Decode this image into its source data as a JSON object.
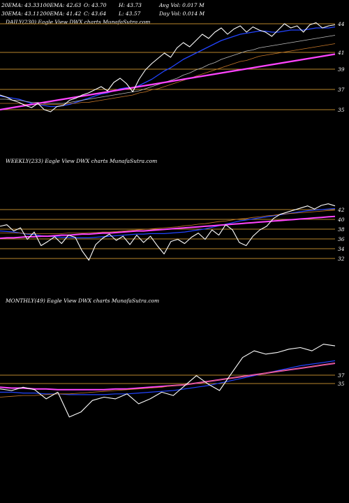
{
  "header": {
    "row1": [
      "20EMA: 43.33",
      "100EMA: 42.63",
      "O: 43.70",
      "H: 43.73",
      "Avg Vol: 0.017  M"
    ],
    "row2": [
      "30EMA: 43.11",
      "200EMA: 41.42",
      "C: 43.64",
      "L: 43.57",
      "Day Vol: 0.014  M"
    ]
  },
  "colors": {
    "background": "#000000",
    "gridline": "#b8862b",
    "price": "#ffffff",
    "ema_blue": "#2244ff",
    "ema_magenta": "#ff44ff",
    "ema_orange": "#c87828",
    "ema_gray": "#bbbbbb"
  },
  "chart_data": [
    {
      "type": "line",
      "title": "DAILY(230) Eagle  View  DWX  charts MunafaSutra.com",
      "yticks": [
        44,
        41,
        39,
        37,
        35
      ],
      "series": [
        {
          "values": [
            37.0,
            36.8,
            36.5,
            36.3,
            36.0,
            35.8,
            36.2,
            35.6,
            35.4,
            35.9,
            36.0,
            36.5,
            36.7,
            37.0,
            37.2,
            37.5,
            37.8,
            37.4,
            38.2,
            38.6,
            38.1,
            37.3,
            38.5,
            39.4,
            40.0,
            40.5,
            41.0,
            40.6,
            41.5,
            42.0,
            41.6,
            42.2,
            42.8,
            42.4,
            43.0,
            43.4,
            42.8,
            43.3,
            43.6,
            43.0,
            43.5,
            43.2,
            43.0,
            42.6,
            43.2,
            43.8,
            43.4,
            43.6,
            43.0,
            43.7,
            43.9,
            43.4,
            43.6,
            43.7
          ]
        },
        {
          "values": [
            36.9,
            36.8,
            36.7,
            36.6,
            36.4,
            36.2,
            36.1,
            36.0,
            35.9,
            35.9,
            36.0,
            36.1,
            36.3,
            36.5,
            36.7,
            36.9,
            37.1,
            37.2,
            37.4,
            37.6,
            37.7,
            37.7,
            37.9,
            38.2,
            38.5,
            38.9,
            39.3,
            39.6,
            40.0,
            40.4,
            40.7,
            41.0,
            41.3,
            41.6,
            41.9,
            42.2,
            42.4,
            42.6,
            42.8,
            42.9,
            43.0,
            43.1,
            43.1,
            43.0,
            43.0,
            43.1,
            43.2,
            43.2,
            43.2,
            43.3,
            43.4,
            43.4,
            43.4,
            43.5
          ]
        },
        {
          "values": [
            36.6,
            36.6,
            36.5,
            36.5,
            36.4,
            36.3,
            36.3,
            36.2,
            36.2,
            36.2,
            36.2,
            36.3,
            36.4,
            36.5,
            36.6,
            36.7,
            36.8,
            36.9,
            37.0,
            37.1,
            37.2,
            37.3,
            37.4,
            37.6,
            37.8,
            38.0,
            38.2,
            38.4,
            38.6,
            38.9,
            39.1,
            39.4,
            39.6,
            39.9,
            40.1,
            40.4,
            40.6,
            40.8,
            41.0,
            41.2,
            41.3,
            41.5,
            41.6,
            41.7,
            41.8,
            41.9,
            42.0,
            42.1,
            42.2,
            42.3,
            42.4,
            42.5,
            42.6,
            42.7
          ]
        },
        {
          "values": [
            36.2,
            36.2,
            36.2,
            36.2,
            36.1,
            36.1,
            36.1,
            36.1,
            36.1,
            36.1,
            36.1,
            36.2,
            36.2,
            36.3,
            36.3,
            36.4,
            36.5,
            36.6,
            36.7,
            36.8,
            36.9,
            37.0,
            37.2,
            37.3,
            37.5,
            37.6,
            37.8,
            38.0,
            38.2,
            38.4,
            38.6,
            38.8,
            39.0,
            39.2,
            39.4,
            39.6,
            39.8,
            40.0,
            40.2,
            40.3,
            40.5,
            40.7,
            40.8,
            40.9,
            41.0,
            41.1,
            41.2,
            41.3,
            41.4,
            41.5,
            41.6,
            41.7,
            41.8,
            41.9
          ]
        },
        {
          "values": [
            35.6,
            35.7,
            35.8,
            35.9,
            36.0,
            36.1,
            36.2,
            36.3,
            36.4,
            36.5,
            36.6,
            36.7,
            36.8,
            36.9,
            37.0,
            37.1,
            37.2,
            37.3,
            37.4,
            37.5,
            37.6,
            37.7,
            37.8,
            37.9,
            38.0,
            38.1,
            38.2,
            38.3,
            38.4,
            38.5,
            38.6,
            38.7,
            38.8,
            38.9,
            39.0,
            39.1,
            39.2,
            39.3,
            39.4,
            39.5,
            39.6,
            39.7,
            39.8,
            39.9,
            40.0,
            40.1,
            40.2,
            40.3,
            40.4,
            40.5,
            40.6,
            40.7,
            40.8,
            40.9
          ]
        }
      ]
    },
    {
      "type": "line",
      "title": "WEEKLY(233) Eagle  View  DWX  charts MunafaSutra.com",
      "yticks": [
        42,
        40,
        38,
        36,
        34,
        32
      ],
      "series": [
        {
          "values": [
            38.5,
            38.8,
            37.6,
            38.2,
            36.0,
            37.4,
            34.8,
            35.6,
            36.5,
            35.2,
            36.8,
            36.4,
            33.8,
            32.0,
            35.0,
            36.2,
            37.0,
            35.8,
            36.6,
            35.0,
            36.8,
            35.4,
            36.6,
            34.8,
            33.2,
            35.6,
            36.0,
            35.2,
            36.4,
            37.2,
            36.0,
            37.8,
            36.8,
            38.8,
            37.8,
            35.4,
            34.8,
            36.6,
            37.8,
            38.5,
            40.0,
            40.8,
            41.2,
            41.6,
            42.0,
            42.4,
            41.8,
            42.5,
            42.8,
            42.4
          ]
        },
        {
          "values": [
            37.6,
            37.5,
            37.4,
            37.2,
            37.0,
            36.9,
            36.7,
            36.6,
            36.5,
            36.4,
            36.4,
            36.3,
            36.3,
            36.3,
            36.4,
            36.5,
            36.6,
            36.7,
            36.8,
            36.9,
            37.0,
            37.0,
            37.1,
            37.1,
            37.1,
            37.2,
            37.3,
            37.4,
            37.6,
            37.8,
            38.0,
            38.3,
            38.6,
            38.9,
            39.2,
            39.5,
            39.7,
            39.9,
            40.1,
            40.3,
            40.5,
            40.7,
            40.9,
            41.1,
            41.3,
            41.5,
            41.6,
            41.7,
            41.8,
            41.9
          ]
        },
        {
          "values": [
            36.2,
            36.3,
            36.3,
            36.4,
            36.5,
            36.5,
            36.6,
            36.6,
            36.7,
            36.8,
            36.8,
            36.9,
            37.0,
            37.0,
            37.1,
            37.2,
            37.2,
            37.3,
            37.4,
            37.5,
            37.6,
            37.6,
            37.7,
            37.8,
            37.9,
            38.0,
            38.1,
            38.2,
            38.3,
            38.4,
            38.5,
            38.6,
            38.7,
            38.8,
            38.9,
            39.0,
            39.1,
            39.2,
            39.3,
            39.4,
            39.5,
            39.6,
            39.7,
            39.8,
            39.9,
            40.0,
            40.1,
            40.2,
            40.3,
            40.4
          ]
        },
        {
          "values": [
            37.2,
            37.2,
            37.2,
            37.2,
            37.1,
            37.1,
            37.1,
            37.1,
            37.1,
            37.1,
            37.2,
            37.2,
            37.2,
            37.3,
            37.3,
            37.4,
            37.4,
            37.5,
            37.6,
            37.7,
            37.8,
            37.9,
            38.0,
            38.1,
            38.2,
            38.3,
            38.4,
            38.6,
            38.7,
            38.9,
            39.0,
            39.2,
            39.4,
            39.5,
            39.7,
            39.9,
            40.0,
            40.2,
            40.3,
            40.5,
            40.6,
            40.8,
            40.9,
            41.0,
            41.1,
            41.2,
            41.3,
            41.4,
            41.5,
            41.6
          ]
        }
      ]
    },
    {
      "type": "line",
      "title": "MONTHLY(49) Eagle  View  DWX  charts MunafaSutra.com",
      "yticks": [
        37,
        35
      ],
      "series": [
        {
          "values": [
            36.4,
            36.2,
            36.6,
            36.3,
            35.2,
            36.0,
            33.0,
            33.6,
            35.0,
            35.4,
            35.2,
            35.8,
            34.6,
            35.2,
            36.0,
            35.6,
            36.8,
            38.0,
            37.0,
            36.2,
            38.2,
            40.2,
            41.0,
            40.6,
            40.8,
            41.2,
            41.4,
            41.0,
            41.8,
            41.6
          ]
        },
        {
          "values": [
            36.0,
            36.0,
            35.9,
            35.9,
            35.8,
            35.8,
            35.7,
            35.7,
            35.7,
            35.7,
            35.8,
            35.8,
            35.9,
            36.0,
            36.1,
            36.2,
            36.4,
            36.6,
            36.8,
            37.1,
            37.4,
            37.7,
            38.0,
            38.3,
            38.6,
            38.9,
            39.2,
            39.4,
            39.6,
            39.8
          ]
        },
        {
          "values": [
            36.6,
            36.5,
            36.5,
            36.4,
            36.4,
            36.3,
            36.3,
            36.3,
            36.3,
            36.3,
            36.4,
            36.4,
            36.5,
            36.6,
            36.7,
            36.8,
            36.9,
            37.1,
            37.3,
            37.5,
            37.7,
            37.9,
            38.1,
            38.3,
            38.5,
            38.7,
            38.9,
            39.1,
            39.3,
            39.5
          ]
        },
        {
          "values": [
            35.4,
            35.5,
            35.6,
            35.6,
            35.7,
            35.8,
            35.8,
            35.9,
            36.0,
            36.1,
            36.2,
            36.3,
            36.4,
            36.5,
            36.6,
            36.8,
            36.9,
            37.1,
            37.3,
            37.5,
            37.7,
            37.9,
            38.1,
            38.3,
            38.5,
            38.7,
            38.9,
            39.1,
            39.3,
            39.5
          ]
        }
      ]
    }
  ]
}
